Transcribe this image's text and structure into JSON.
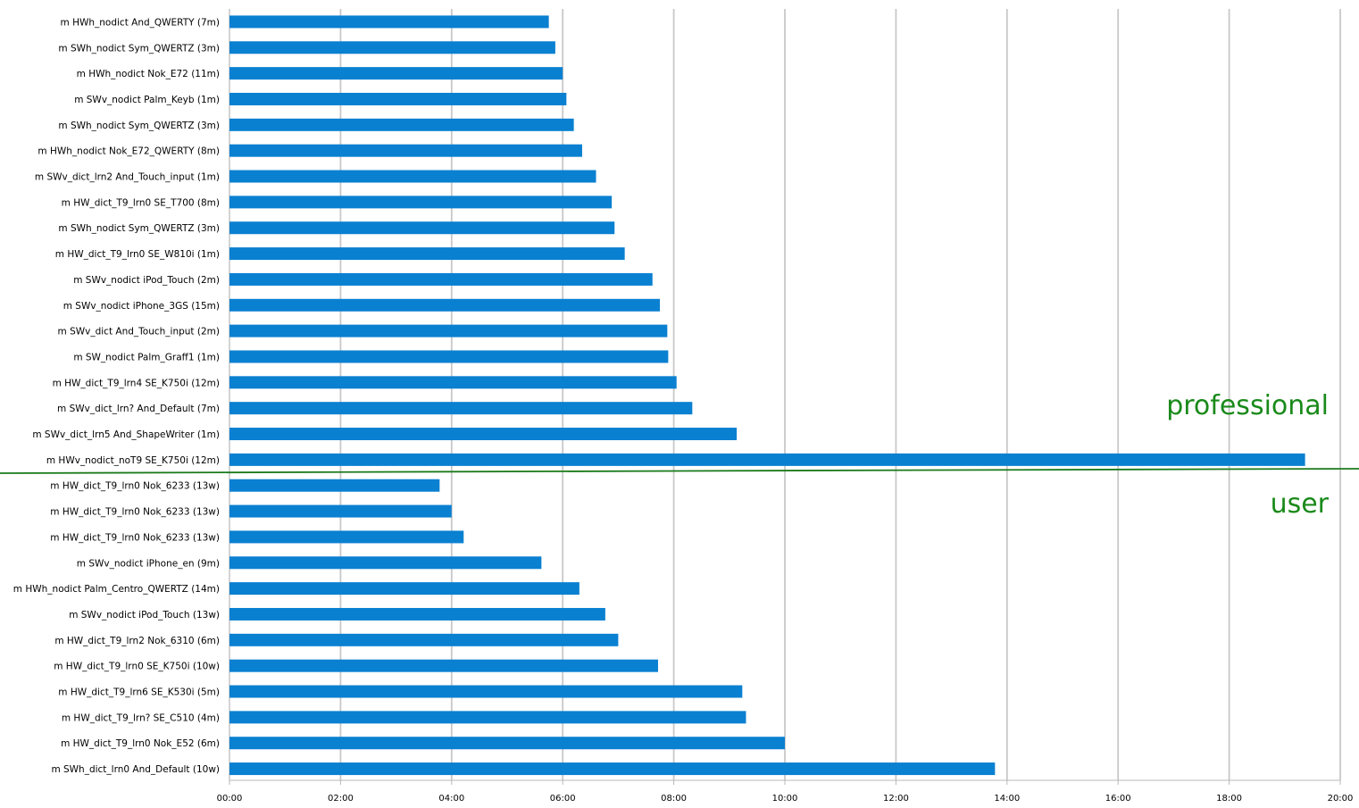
{
  "chart_data": {
    "type": "bar",
    "orientation": "horizontal",
    "x_unit": "mm:ss",
    "xlim": [
      0,
      1200
    ],
    "x_ticks": [
      "00:00",
      "02:00",
      "04:00",
      "06:00",
      "08:00",
      "10:00",
      "12:00",
      "14:00",
      "16:00",
      "18:00",
      "20:00"
    ],
    "grid": true,
    "bar_color": "#0a80d1",
    "annotation_color": "#1a8a1a",
    "categories": [
      "m HWh_nodict And_QWERTY (7m)",
      "m SWh_nodict Sym_QWERTZ (3m)",
      "m HWh_nodict Nok_E72 (11m)",
      "m SWv_nodict Palm_Keyb (1m)",
      "m SWh_nodict Sym_QWERTZ (3m)",
      "m HWh_nodict Nok_E72_QWERTY (8m)",
      "m SWv_dict_lrn2 And_Touch_input (1m)",
      "m HW_dict_T9_lrn0 SE_T700 (8m)",
      "m SWh_nodict Sym_QWERTZ (3m)",
      "m HW_dict_T9_lrn0 SE_W810i (1m)",
      "m SWv_nodict iPod_Touch (2m)",
      "m SWv_nodict iPhone_3GS (15m)",
      "m SWv_dict And_Touch_input (2m)",
      "m SW_nodict Palm_Graff1 (1m)",
      "m HW_dict_T9_lrn4 SE_K750i (12m)",
      "m SWv_dict_lrn? And_Default (7m)",
      "m SWv_dict_lrn5 And_ShapeWriter (1m)",
      "m HWv_nodict_noT9 SE_K750i (12m)",
      "m HW_dict_T9_lrn0 Nok_6233 (13w)",
      "m HW_dict_T9_lrn0 Nok_6233 (13w)",
      "m HW_dict_T9_lrn0 Nok_6233 (13w)",
      "m SWv_nodict iPhone_en (9m)",
      "m HWh_nodict Palm_Centro_QWERTZ (14m)",
      "m SWv_nodict iPod_Touch (13w)",
      "m HW_dict_T9_lrn2 Nok_6310 (6m)",
      "m HW_dict_T9_lrn0 SE_K750i (10w)",
      "m HW_dict_T9_lrn6 SE_K530i (5m)",
      "m HW_dict_T9_lrn? SE_C510 (4m)",
      "m HW_dict_T9_lrn0 Nok_E52 (6m)",
      "m SWh_dict_lrn0 And_Default (10w)"
    ],
    "values_seconds": [
      345,
      352,
      360,
      364,
      372,
      381,
      396,
      413,
      416,
      427,
      457,
      465,
      473,
      474,
      483,
      500,
      548,
      1162,
      227,
      240,
      253,
      337,
      378,
      406,
      420,
      463,
      554,
      558,
      600,
      827
    ],
    "annotations": [
      {
        "text": "professional"
      },
      {
        "text": "user"
      }
    ]
  }
}
